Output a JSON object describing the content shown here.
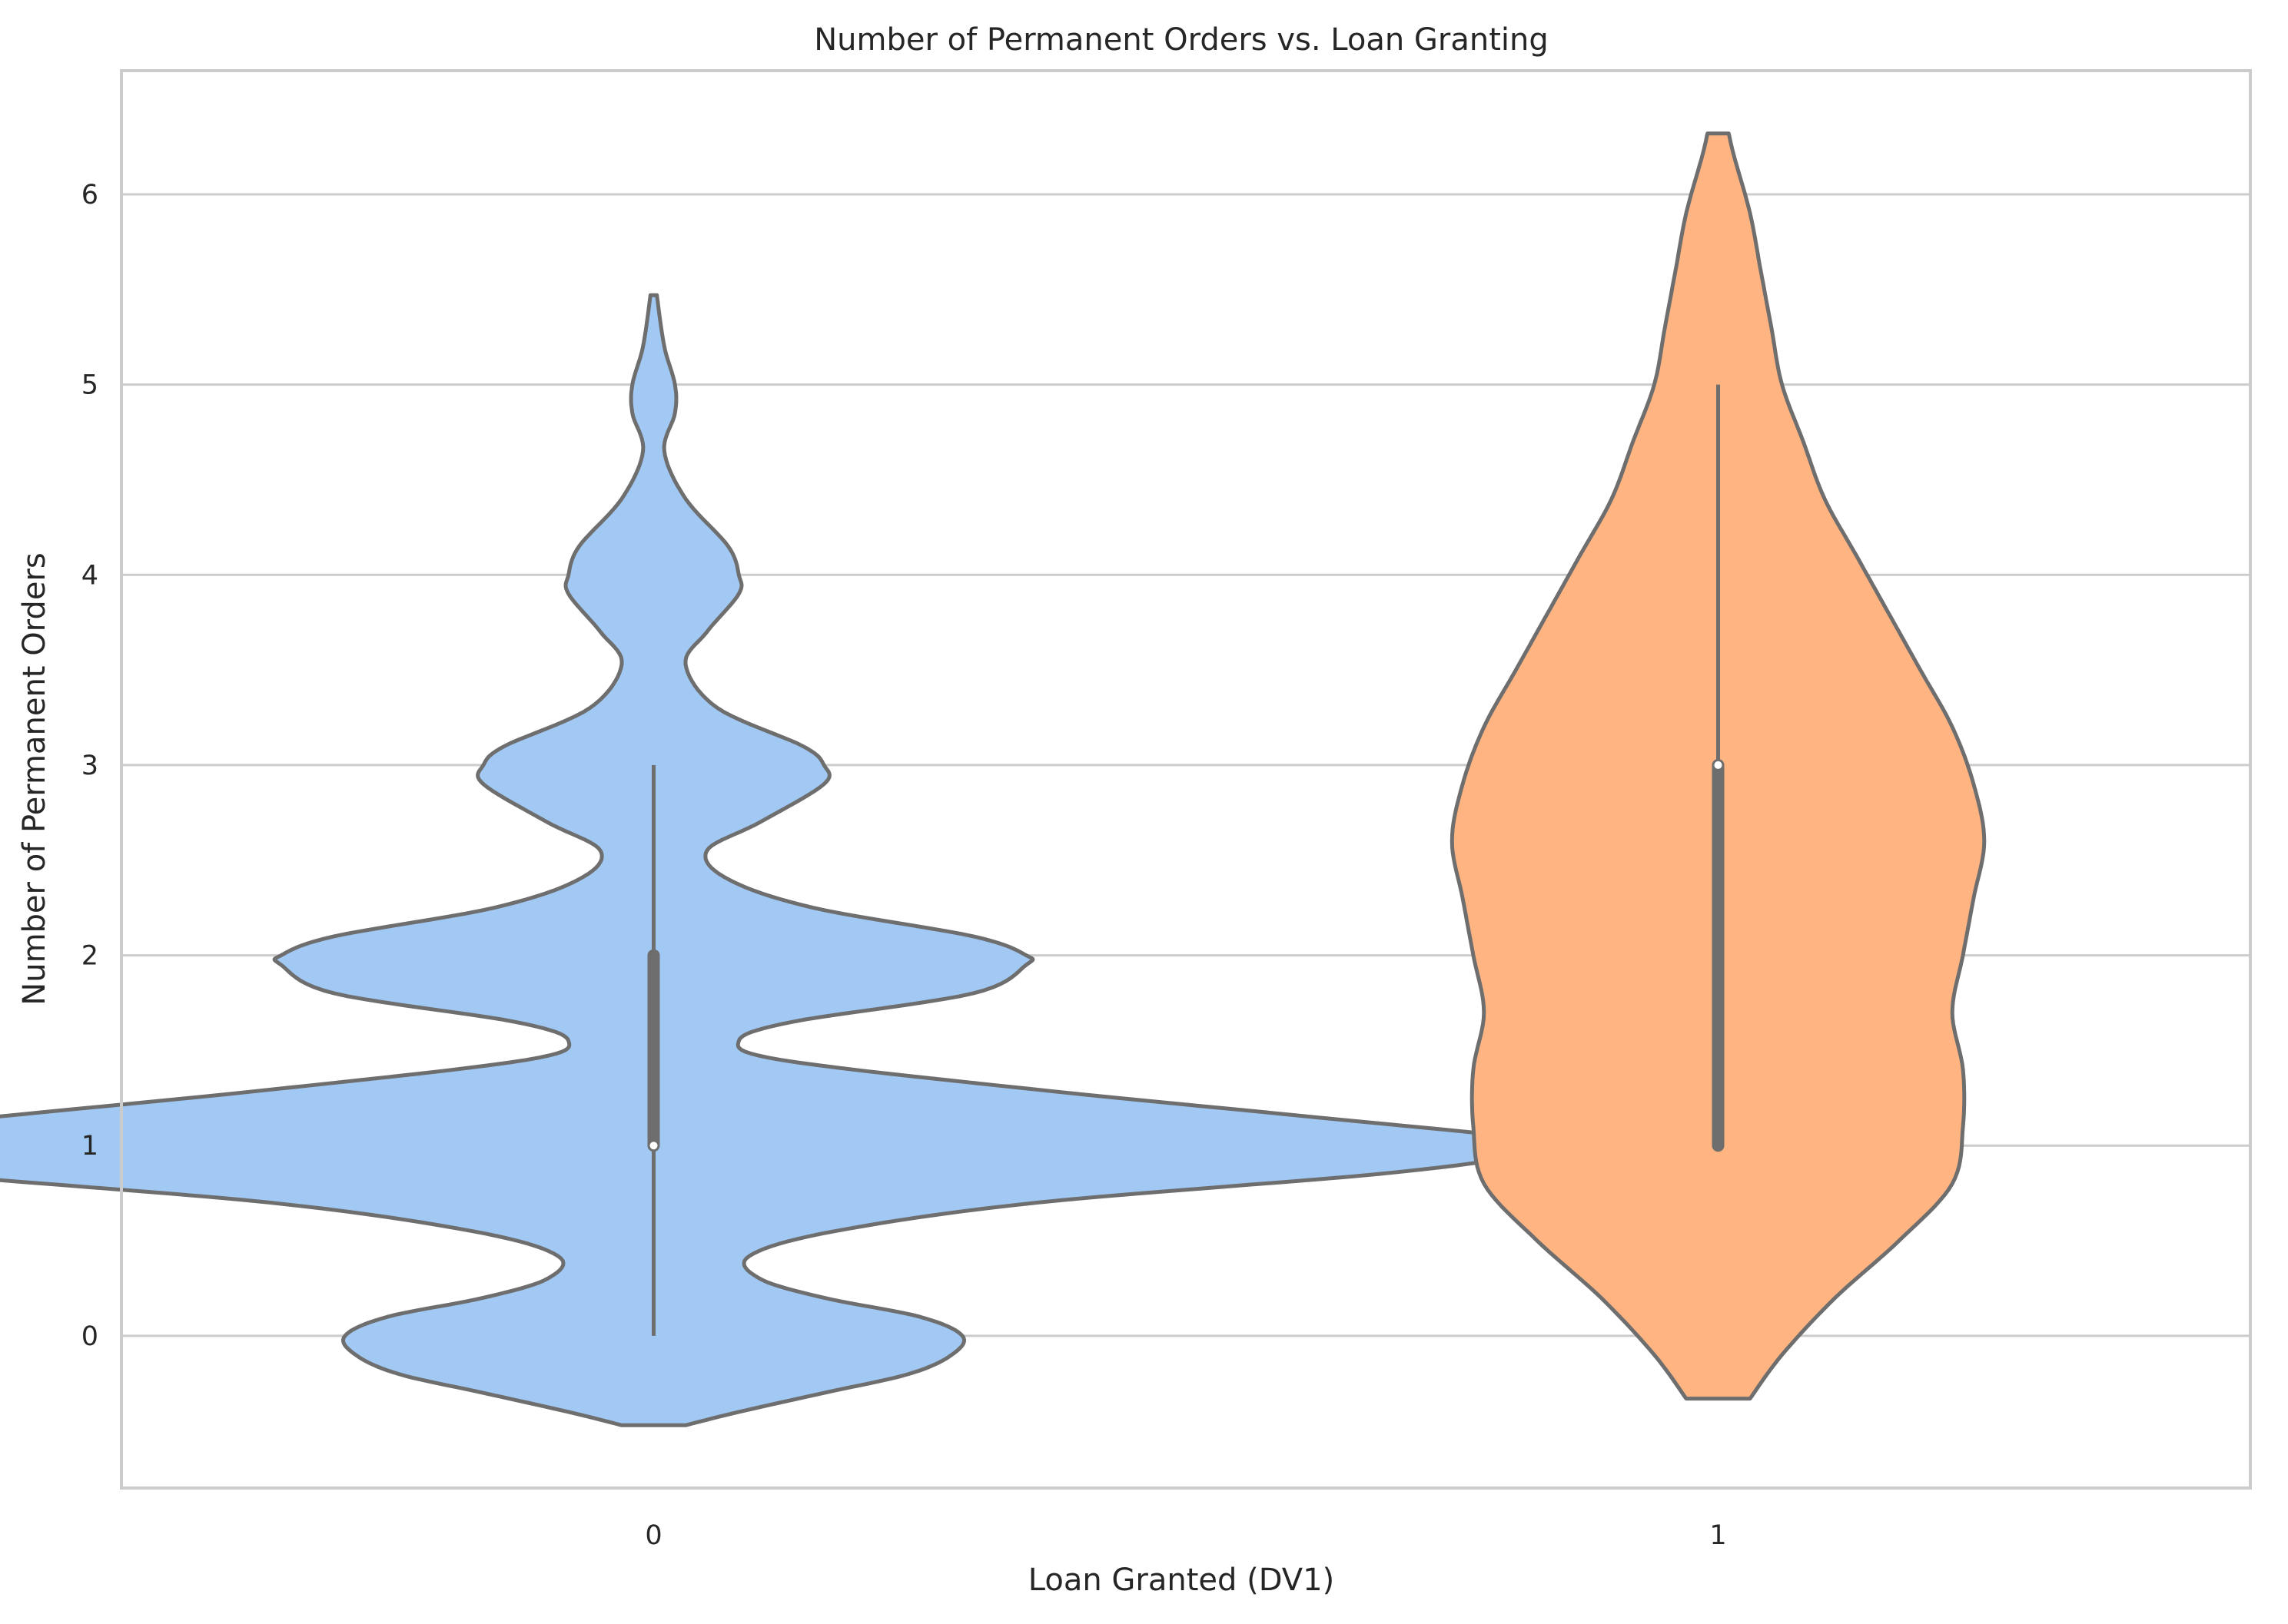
{
  "chart_data": {
    "type": "violin",
    "title": "Number of Permanent Orders vs. Loan Granting",
    "xlabel": "Loan Granted (DV1)",
    "ylabel": "Number of Permanent Orders",
    "categories": [
      "0",
      "1"
    ],
    "yticks": [
      "0",
      "1",
      "2",
      "3",
      "4",
      "5",
      "6"
    ],
    "ylim": [
      -0.8,
      6.65
    ],
    "grid": "horizontal",
    "colors": {
      "0": "#a1c9f4",
      "1": "#ffb482",
      "outline": "#6e6e6e",
      "median": "#ffffff"
    },
    "series": [
      {
        "category": "0",
        "min": 0,
        "q1": 1,
        "median": 1,
        "q3": 2,
        "max": 3,
        "density_range": [
          -0.47,
          5.47
        ],
        "half_width": [
          [
            -0.47,
            0.03
          ],
          [
            -0.4,
            0.08
          ],
          [
            -0.3,
            0.16
          ],
          [
            -0.2,
            0.24
          ],
          [
            -0.1,
            0.28
          ],
          [
            0.0,
            0.29
          ],
          [
            0.1,
            0.25
          ],
          [
            0.2,
            0.16
          ],
          [
            0.3,
            0.1
          ],
          [
            0.42,
            0.09
          ],
          [
            0.55,
            0.17
          ],
          [
            0.7,
            0.36
          ],
          [
            0.85,
            0.68
          ],
          [
            0.95,
            0.82
          ],
          [
            1.0,
            0.84
          ],
          [
            1.05,
            0.8
          ],
          [
            1.15,
            0.62
          ],
          [
            1.3,
            0.35
          ],
          [
            1.45,
            0.12
          ],
          [
            1.55,
            0.08
          ],
          [
            1.65,
            0.13
          ],
          [
            1.8,
            0.3
          ],
          [
            1.95,
            0.35
          ],
          [
            2.0,
            0.35
          ],
          [
            2.1,
            0.3
          ],
          [
            2.25,
            0.15
          ],
          [
            2.4,
            0.07
          ],
          [
            2.55,
            0.05
          ],
          [
            2.7,
            0.1
          ],
          [
            2.9,
            0.16
          ],
          [
            3.0,
            0.16
          ],
          [
            3.1,
            0.14
          ],
          [
            3.3,
            0.06
          ],
          [
            3.53,
            0.03
          ],
          [
            3.7,
            0.05
          ],
          [
            3.9,
            0.08
          ],
          [
            4.0,
            0.08
          ],
          [
            4.15,
            0.07
          ],
          [
            4.4,
            0.03
          ],
          [
            4.65,
            0.01
          ],
          [
            4.85,
            0.02
          ],
          [
            5.0,
            0.02
          ],
          [
            5.2,
            0.01
          ],
          [
            5.47,
            0.003
          ]
        ]
      },
      {
        "category": "1",
        "min": 1,
        "q1": 1,
        "median": 3,
        "q3": 3,
        "max": 5,
        "density_range": [
          -0.33,
          6.32
        ],
        "half_width": [
          [
            -0.33,
            0.03
          ],
          [
            -0.1,
            0.06
          ],
          [
            0.2,
            0.11
          ],
          [
            0.5,
            0.17
          ],
          [
            0.8,
            0.22
          ],
          [
            1.1,
            0.23
          ],
          [
            1.4,
            0.23
          ],
          [
            1.7,
            0.22
          ],
          [
            2.0,
            0.23
          ],
          [
            2.3,
            0.24
          ],
          [
            2.6,
            0.25
          ],
          [
            2.9,
            0.24
          ],
          [
            3.2,
            0.22
          ],
          [
            3.5,
            0.19
          ],
          [
            3.8,
            0.16
          ],
          [
            4.1,
            0.13
          ],
          [
            4.4,
            0.1
          ],
          [
            4.7,
            0.08
          ],
          [
            5.0,
            0.06
          ],
          [
            5.3,
            0.05
          ],
          [
            5.6,
            0.04
          ],
          [
            5.9,
            0.03
          ],
          [
            6.2,
            0.015
          ],
          [
            6.32,
            0.01
          ]
        ]
      }
    ]
  }
}
